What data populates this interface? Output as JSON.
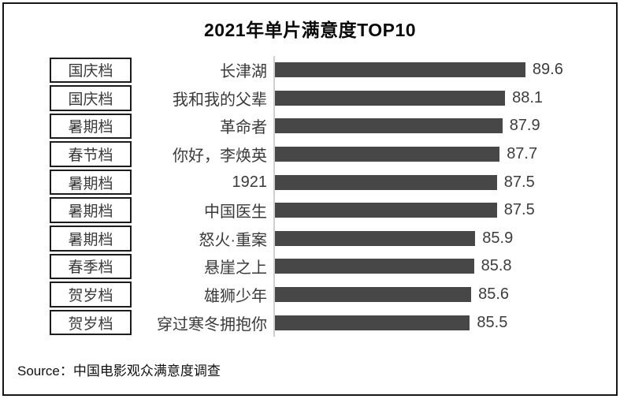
{
  "title": "2021年单片满意度TOP10",
  "source_note": "Source：中国电影观众满意度调查",
  "colors": {
    "bar": "#474747",
    "outer_border": "#161616",
    "box_border": "#1c1c1c",
    "axis_line": "#cfcfcf",
    "value_text": "#3d3d3d",
    "title_text": "#0a0a0a"
  },
  "chart_data": {
    "type": "bar",
    "orientation": "horizontal",
    "title": "2021年单片满意度TOP10",
    "categories": [
      "长津湖",
      "我和我的父辈",
      "革命者",
      "你好，李焕英",
      "1921",
      "中国医生",
      "怒火·重案",
      "悬崖之上",
      "雄狮少年",
      "穿过寒冬拥抱你"
    ],
    "series": [
      {
        "name": "满意度",
        "values": [
          89.6,
          88.1,
          87.9,
          87.7,
          87.5,
          87.5,
          85.9,
          85.8,
          85.6,
          85.5
        ]
      }
    ],
    "rows": [
      {
        "tier": "国庆档",
        "film": "长津湖",
        "value": 89.6
      },
      {
        "tier": "国庆档",
        "film": "我和我的父辈",
        "value": 88.1
      },
      {
        "tier": "暑期档",
        "film": "革命者",
        "value": 87.9
      },
      {
        "tier": "春节档",
        "film": "你好，李焕英",
        "value": 87.7
      },
      {
        "tier": "暑期档",
        "film": "1921",
        "value": 87.5
      },
      {
        "tier": "暑期档",
        "film": "中国医生",
        "value": 87.5
      },
      {
        "tier": "暑期档",
        "film": "怒火·重案",
        "value": 85.9
      },
      {
        "tier": "春季档",
        "film": "悬崖之上",
        "value": 85.8
      },
      {
        "tier": "贺岁档",
        "film": "雄狮少年",
        "value": 85.6
      },
      {
        "tier": "贺岁档",
        "film": "穿过寒冬拥抱你",
        "value": 85.5
      }
    ],
    "x_axis": {
      "shown": false,
      "min_estimate": 71,
      "max_estimate": 90
    },
    "grid": false,
    "legend": false,
    "value_labels": true
  }
}
